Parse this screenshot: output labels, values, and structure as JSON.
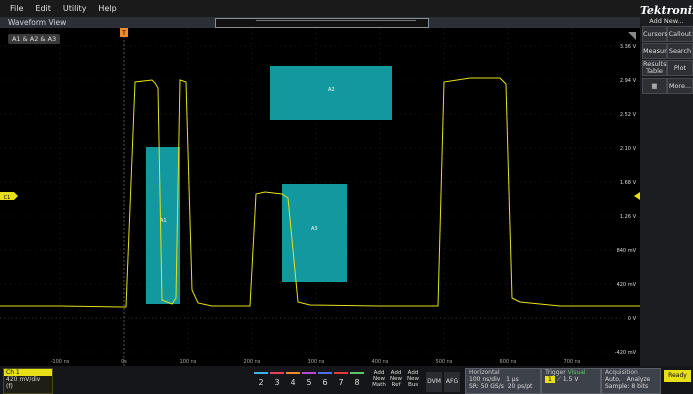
{
  "menu": [
    "File",
    "Edit",
    "Utility",
    "Help"
  ],
  "waveform_view": {
    "title": "Waveform View",
    "badge": "A1 & A2 & A3",
    "trigger_marker": "T",
    "channel_marker": "C1"
  },
  "y_labels": [
    "3.36 V",
    "2.94 V",
    "2.52 V",
    "2.10 V",
    "1.68 V",
    "1.26 V",
    "840 mV",
    "420 mV",
    "0 V",
    "-420 mV"
  ],
  "x_labels": [
    "-100 ns",
    "0s",
    "100 ns",
    "200 ns",
    "300 ns",
    "400 ns",
    "500 ns",
    "600 ns",
    "700 ns"
  ],
  "areas": [
    "A1",
    "A2",
    "A3"
  ],
  "sidebar": {
    "logo": "Tektronix",
    "add_new": "Add New...",
    "buttons": [
      "Cursors",
      "Callout",
      "Measure",
      "Search",
      "Results Table",
      "Plot",
      "More..."
    ]
  },
  "bottom": {
    "ch1": {
      "label": "Ch 1",
      "scale": "420 mV/div",
      "line2": "(f)",
      "line3": "1.78V"
    },
    "channels": [
      {
        "label": "2",
        "color": "#3bb4e6"
      },
      {
        "label": "3",
        "color": "#e6405a"
      },
      {
        "label": "4",
        "color": "#f08a2a"
      },
      {
        "label": "5",
        "color": "#b54bd6"
      },
      {
        "label": "6",
        "color": "#4a73e8"
      },
      {
        "label": "7",
        "color": "#e83a3a"
      },
      {
        "label": "8",
        "color": "#5ec46a"
      }
    ],
    "add_math": [
      "Add",
      "New",
      "Math"
    ],
    "add_ref": [
      "Add",
      "New",
      "Ref"
    ],
    "add_bus": [
      "Add",
      "New",
      "Bus"
    ],
    "dvm": "DVM",
    "afg": "AFG",
    "horizontal": {
      "title": "Horizontal",
      "l1a": "100 ns/div",
      "l1b": "1 µs",
      "l2a": "SR: 50 GS/s",
      "l2b": "20 ps/pt",
      "l3a": "RL: 50 kpts",
      "l3b": "@ 10%"
    },
    "trigger": {
      "title": "Trigger",
      "mode": "Visual",
      "ch": "1",
      "level": "1.5 V"
    },
    "acquisition": {
      "title": "Acquisition",
      "l1a": "Auto,",
      "l1b": "Analyze",
      "l2": "Sample: 8 bits",
      "l3": "0 Acqs"
    },
    "ready": "Ready"
  },
  "colors": {
    "trace": "#e8e017",
    "area": "#14a9b0"
  }
}
